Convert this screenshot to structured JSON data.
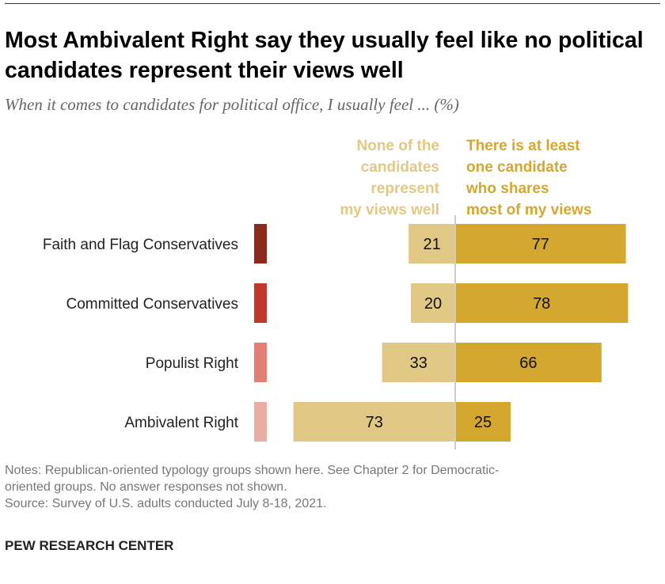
{
  "title": "Most Ambivalent Right say they usually feel like no political candidates represent their views well",
  "subtitle": "When it comes to candidates for political office, I usually feel ... (%)",
  "chart_data": {
    "type": "bar",
    "orientation": "horizontal-diverging",
    "categories": [
      "Faith and Flag Conservatives",
      "Committed Conservatives",
      "Populist Right",
      "Ambivalent Right"
    ],
    "category_colors": [
      "#8c2a1e",
      "#c0392b",
      "#e47f76",
      "#ebaca3"
    ],
    "series": [
      {
        "name": "None of the candidates represent my views well",
        "name_lines": [
          "None of the",
          "candidates",
          "represent",
          "my views well"
        ],
        "values": [
          21,
          20,
          33,
          73
        ],
        "color": "#e1c885"
      },
      {
        "name": "There is at least one candidate who shares most of my views",
        "name_lines": [
          "There is at least",
          "one candidate",
          "who shares",
          "most of my views"
        ],
        "values": [
          77,
          78,
          66,
          25
        ],
        "color": "#d4a72f"
      }
    ],
    "legend_placement": "top",
    "grid": false
  },
  "notes": [
    "Notes: Republican-oriented typology groups shown here. See Chapter 2 for Democratic-",
    "oriented groups. No answer responses not shown.",
    "Source: Survey of U.S. adults conducted July 8-18, 2021."
  ],
  "brand": "PEW RESEARCH CENTER"
}
